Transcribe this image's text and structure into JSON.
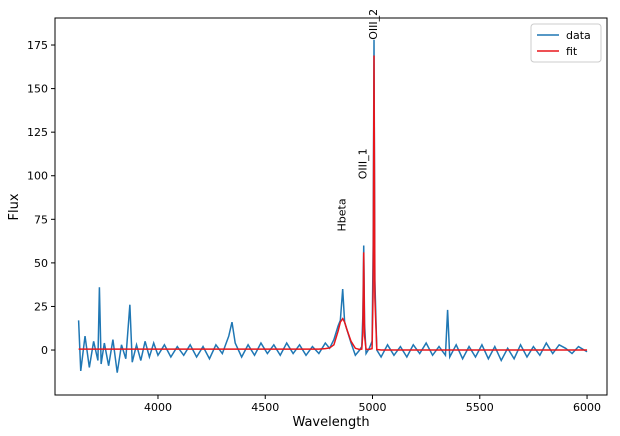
{
  "chart_data": {
    "type": "line",
    "xlabel": "Wavelength",
    "ylabel": "Flux",
    "x": [
      3630,
      3640,
      3660,
      3680,
      3700,
      3720,
      3727,
      3735,
      3750,
      3770,
      3790,
      3810,
      3830,
      3850,
      3869,
      3880,
      3900,
      3920,
      3940,
      3960,
      3980,
      4000,
      4030,
      4060,
      4090,
      4120,
      4150,
      4180,
      4210,
      4240,
      4270,
      4300,
      4330,
      4345,
      4360,
      4390,
      4420,
      4450,
      4480,
      4510,
      4540,
      4570,
      4600,
      4630,
      4660,
      4690,
      4720,
      4750,
      4780,
      4800,
      4820,
      4840,
      4850,
      4861,
      4870,
      4880,
      4900,
      4920,
      4940,
      4950,
      4955,
      4959,
      4963,
      4970,
      4985,
      4998,
      5003,
      5007,
      5011,
      5020,
      5040,
      5070,
      5100,
      5130,
      5160,
      5190,
      5220,
      5250,
      5280,
      5310,
      5340,
      5350,
      5360,
      5390,
      5420,
      5450,
      5480,
      5510,
      5540,
      5570,
      5600,
      5630,
      5660,
      5690,
      5720,
      5750,
      5780,
      5810,
      5840,
      5870,
      5900,
      5930,
      5960,
      6000
    ],
    "series": [
      {
        "name": "data",
        "color": "#1f77b4",
        "values": [
          17,
          -12,
          8,
          -10,
          5,
          -6,
          36,
          -8,
          4,
          -9,
          6,
          -13,
          3,
          -5,
          26,
          -7,
          3,
          -6,
          5,
          -4,
          4,
          -3,
          3,
          -4,
          2,
          -3,
          3,
          -4,
          2,
          -5,
          3,
          -2,
          8,
          16,
          4,
          -4,
          3,
          -3,
          4,
          -2,
          3,
          -3,
          4,
          -2,
          3,
          -3,
          2,
          -2,
          4,
          1,
          6,
          14,
          17,
          35,
          16,
          12,
          4,
          -3,
          0,
          2,
          20,
          60,
          15,
          -2,
          1,
          5,
          60,
          178,
          40,
          0,
          -4,
          3,
          -3,
          2,
          -4,
          3,
          -2,
          4,
          -3,
          2,
          -3,
          23,
          -4,
          3,
          -5,
          2,
          -4,
          3,
          -5,
          2,
          -6,
          1,
          -5,
          3,
          -4,
          2,
          -3,
          4,
          -2,
          3,
          1,
          -2,
          2,
          -1
        ]
      },
      {
        "name": "fit",
        "color": "#e8161b",
        "values": [
          0.5,
          0.5,
          0.5,
          0.5,
          0.5,
          0.5,
          0.5,
          0.5,
          0.5,
          0.5,
          0.5,
          0.5,
          0.5,
          0.5,
          0.5,
          0.5,
          0.5,
          0.5,
          0.5,
          0.5,
          0.5,
          0.5,
          0.5,
          0.5,
          0.5,
          0.5,
          0.5,
          0.5,
          0.5,
          0.5,
          0.5,
          0.5,
          0.5,
          0.5,
          0.5,
          0.5,
          0.5,
          0.5,
          0.5,
          0.5,
          0.5,
          0.5,
          0.5,
          0.5,
          0.5,
          0.5,
          0.5,
          0.5,
          0.8,
          1.2,
          3,
          11,
          16,
          18,
          16,
          12,
          5,
          1,
          0.3,
          0.5,
          10,
          56,
          8,
          0.4,
          0.4,
          0.8,
          35,
          169,
          30,
          0.3,
          0,
          0,
          0,
          0,
          0,
          0,
          0,
          0,
          0,
          0,
          0,
          0,
          0,
          0,
          0,
          0,
          0,
          0,
          0,
          0,
          0,
          0,
          0,
          0,
          0,
          0,
          0,
          0,
          0,
          0,
          0,
          0,
          0,
          0
        ]
      }
    ],
    "annotations": [
      {
        "text": "Hbeta",
        "x": 4861,
        "y": 68
      },
      {
        "text": "OIII_1",
        "x": 4959,
        "y": 98
      },
      {
        "text": "OIII_2",
        "x": 5007,
        "y": 178
      }
    ],
    "xlim": [
      3520,
      6093
    ],
    "ylim": [
      -25.8,
      190.5
    ],
    "xticks": [
      4000,
      4500,
      5000,
      5500,
      6000
    ],
    "yticks": [
      0,
      25,
      50,
      75,
      100,
      125,
      150,
      175
    ],
    "legend": "upper right"
  }
}
